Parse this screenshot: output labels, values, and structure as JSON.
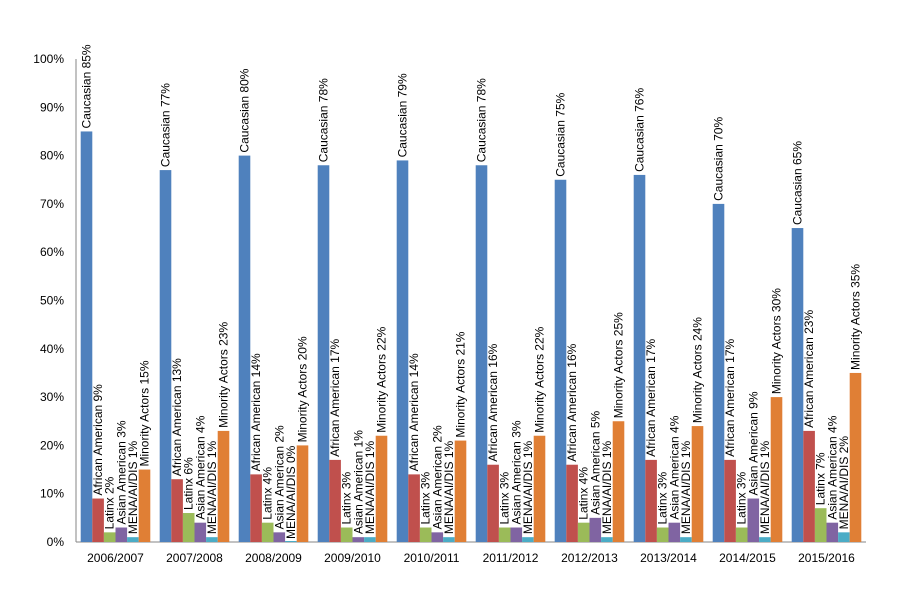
{
  "chart_data": {
    "type": "bar",
    "title": "",
    "xlabel": "",
    "ylabel": "",
    "ylim": [
      0,
      100
    ],
    "yticks": [
      "0%",
      "10%",
      "20%",
      "30%",
      "40%",
      "50%",
      "60%",
      "70%",
      "80%",
      "90%",
      "100%"
    ],
    "grid": false,
    "legend": "none",
    "categories": [
      "2006/2007",
      "2007/2008",
      "2008/2009",
      "2009/2010",
      "2010/2011",
      "2011/2012",
      "2012/2013",
      "2013/2014",
      "2014/2015",
      "2015/2016"
    ],
    "series": [
      {
        "name": "Caucasian",
        "color": "#4F81BD",
        "values": [
          85,
          77,
          80,
          78,
          79,
          78,
          75,
          76,
          70,
          65
        ],
        "labels": [
          "Caucasian 85%",
          "Caucasian 77%",
          "Caucasian 80%",
          "Caucasian 78%",
          "Caucasian 79%",
          "Caucasian 78%",
          "Caucasian 75%",
          "Caucasian 76%",
          "Caucasian 70%",
          "Caucasian 65%"
        ]
      },
      {
        "name": "African American",
        "color": "#C0504D",
        "values": [
          9,
          13,
          14,
          17,
          14,
          16,
          16,
          17,
          17,
          23
        ],
        "labels": [
          "African American 9%",
          "African American 13%",
          "African American 14%",
          "African American 17%",
          "African American 14%",
          "African American 16%",
          "African American 16%",
          "African American 17%",
          "African American 17%",
          "African American 23%"
        ]
      },
      {
        "name": "Latinx",
        "color": "#9BBB59",
        "values": [
          2,
          6,
          4,
          3,
          3,
          3,
          4,
          3,
          3,
          7
        ],
        "labels": [
          "Latinx 2%",
          "Latinx 6%",
          "Latinx 4%",
          "Latinx 3%",
          "Latinx 3%",
          "Latinx 3%",
          "Latinx 4%",
          "Latinx 3%",
          "Latinx 3%",
          "Latinx 7%"
        ]
      },
      {
        "name": "Asian American",
        "color": "#8064A2",
        "values": [
          3,
          4,
          2,
          1,
          2,
          3,
          5,
          4,
          9,
          4
        ],
        "labels": [
          "Asian American 3%",
          "Asian American 4%",
          "Asian American 2%",
          "Asian American 1%",
          "Asian American 2%",
          "Asian American 3%",
          "Asian American 5%",
          "Asian American 4%",
          "Asian American 9%",
          "Asian American  4%"
        ]
      },
      {
        "name": "MENA/AI/DIS",
        "color": "#4BACC6",
        "values": [
          1,
          1,
          0,
          1,
          1,
          1,
          1,
          1,
          1,
          2
        ],
        "labels": [
          "MENA/AI/DIS 1%",
          "MENA/AI/DIS 1%",
          "MENA/AI/DIS 0%",
          "MENA/AI/DIS 1%",
          "MENA/AI/DIS 1%",
          "MENA/AI/DIS 1%",
          "MENA/AI/DIS 1%",
          "MENA/AI/DIS 1%",
          "MENA/AI/DIS 1%",
          "MENA/AI/DIS 2%"
        ]
      },
      {
        "name": "Minority Actors",
        "color": "#E07F35",
        "values": [
          15,
          23,
          20,
          22,
          21,
          22,
          25,
          24,
          30,
          35
        ],
        "labels": [
          "Minority Actors 15%",
          "Minority Actors 23%",
          "Minority Actors 20%",
          "Minority Actors 22%",
          "Minority Actors 21%",
          "Minority Actors 22%",
          "Minority Actors 25%",
          "Minority Actors 24%",
          "Minority Actors 30%",
          "Minority Actors 35%"
        ]
      }
    ]
  }
}
